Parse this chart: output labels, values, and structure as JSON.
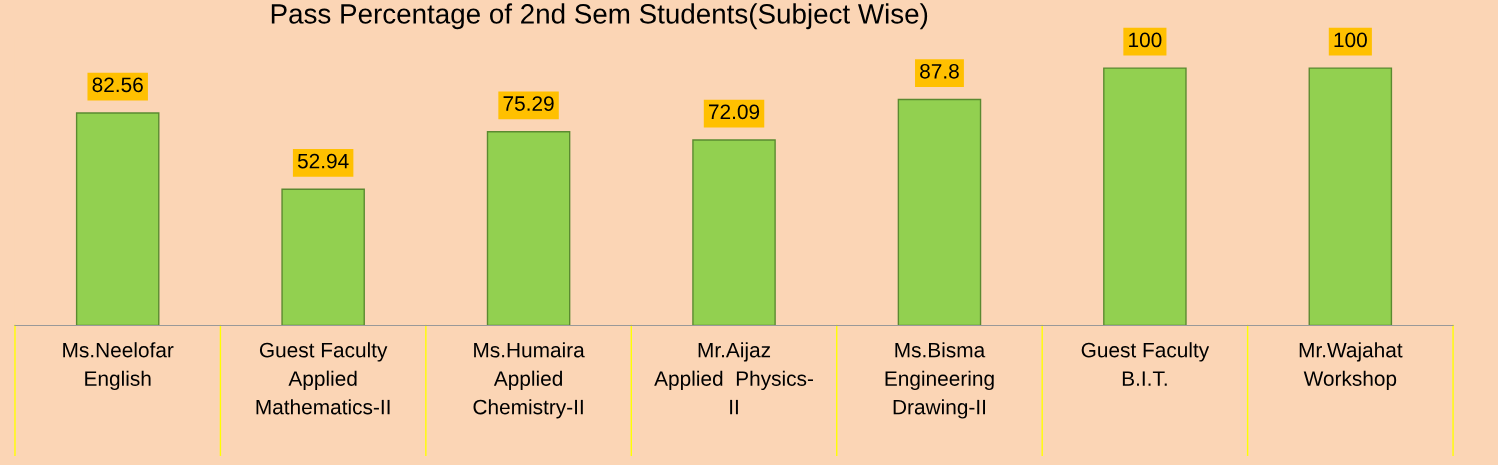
{
  "chart_data": {
    "type": "bar",
    "title": "Pass Percentage of 2nd Sem Students(Subject Wise)",
    "categories": [
      "Ms.Neelofar\nEnglish",
      "Guest Faculty\nApplied\nMathematics-II",
      "Ms.Humaira\nApplied\nChemistry-II",
      "Mr.Aijaz\nApplied  Physics-\nII",
      "Ms.Bisma\nEngineering\nDrawing-II",
      "Guest Faculty\nB.I.T.",
      "Mr.Wajahat\nWorkshop"
    ],
    "values": [
      82.56,
      52.94,
      75.29,
      72.09,
      87.8,
      100,
      100
    ],
    "color": "#92d050",
    "data_labels": true,
    "grid": false,
    "legend": false
  }
}
